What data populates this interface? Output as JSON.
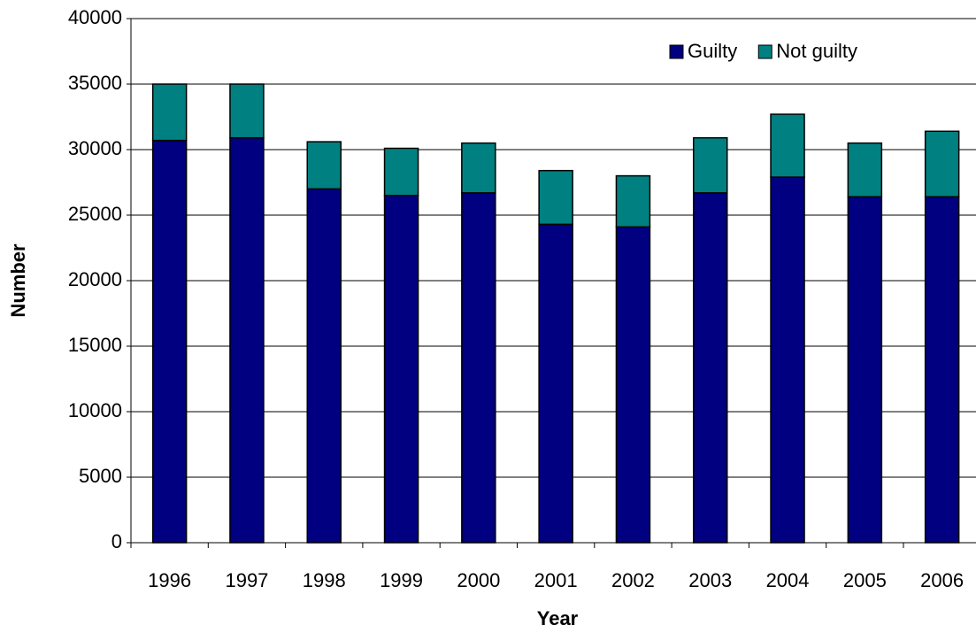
{
  "chart_data": {
    "type": "stacked_bar",
    "x_label": "Year",
    "y_label": "Number",
    "categories": [
      "1996",
      "1997",
      "1998",
      "1999",
      "2000",
      "2001",
      "2002",
      "2003",
      "2004",
      "2005",
      "2006"
    ],
    "series": [
      {
        "name": "Guilty",
        "color": "#000080",
        "values": [
          30700,
          30900,
          27000,
          26500,
          26700,
          24300,
          24100,
          26700,
          27900,
          26400,
          26400
        ]
      },
      {
        "name": "Not guilty",
        "color": "#008080",
        "values": [
          4300,
          4100,
          3600,
          3600,
          3800,
          4100,
          3900,
          4200,
          4800,
          4100,
          5000
        ]
      }
    ],
    "ylim": [
      0,
      40000
    ],
    "yticks": [
      0,
      5000,
      10000,
      15000,
      20000,
      25000,
      30000,
      35000,
      40000
    ],
    "grid": true,
    "legend": "top-right"
  }
}
